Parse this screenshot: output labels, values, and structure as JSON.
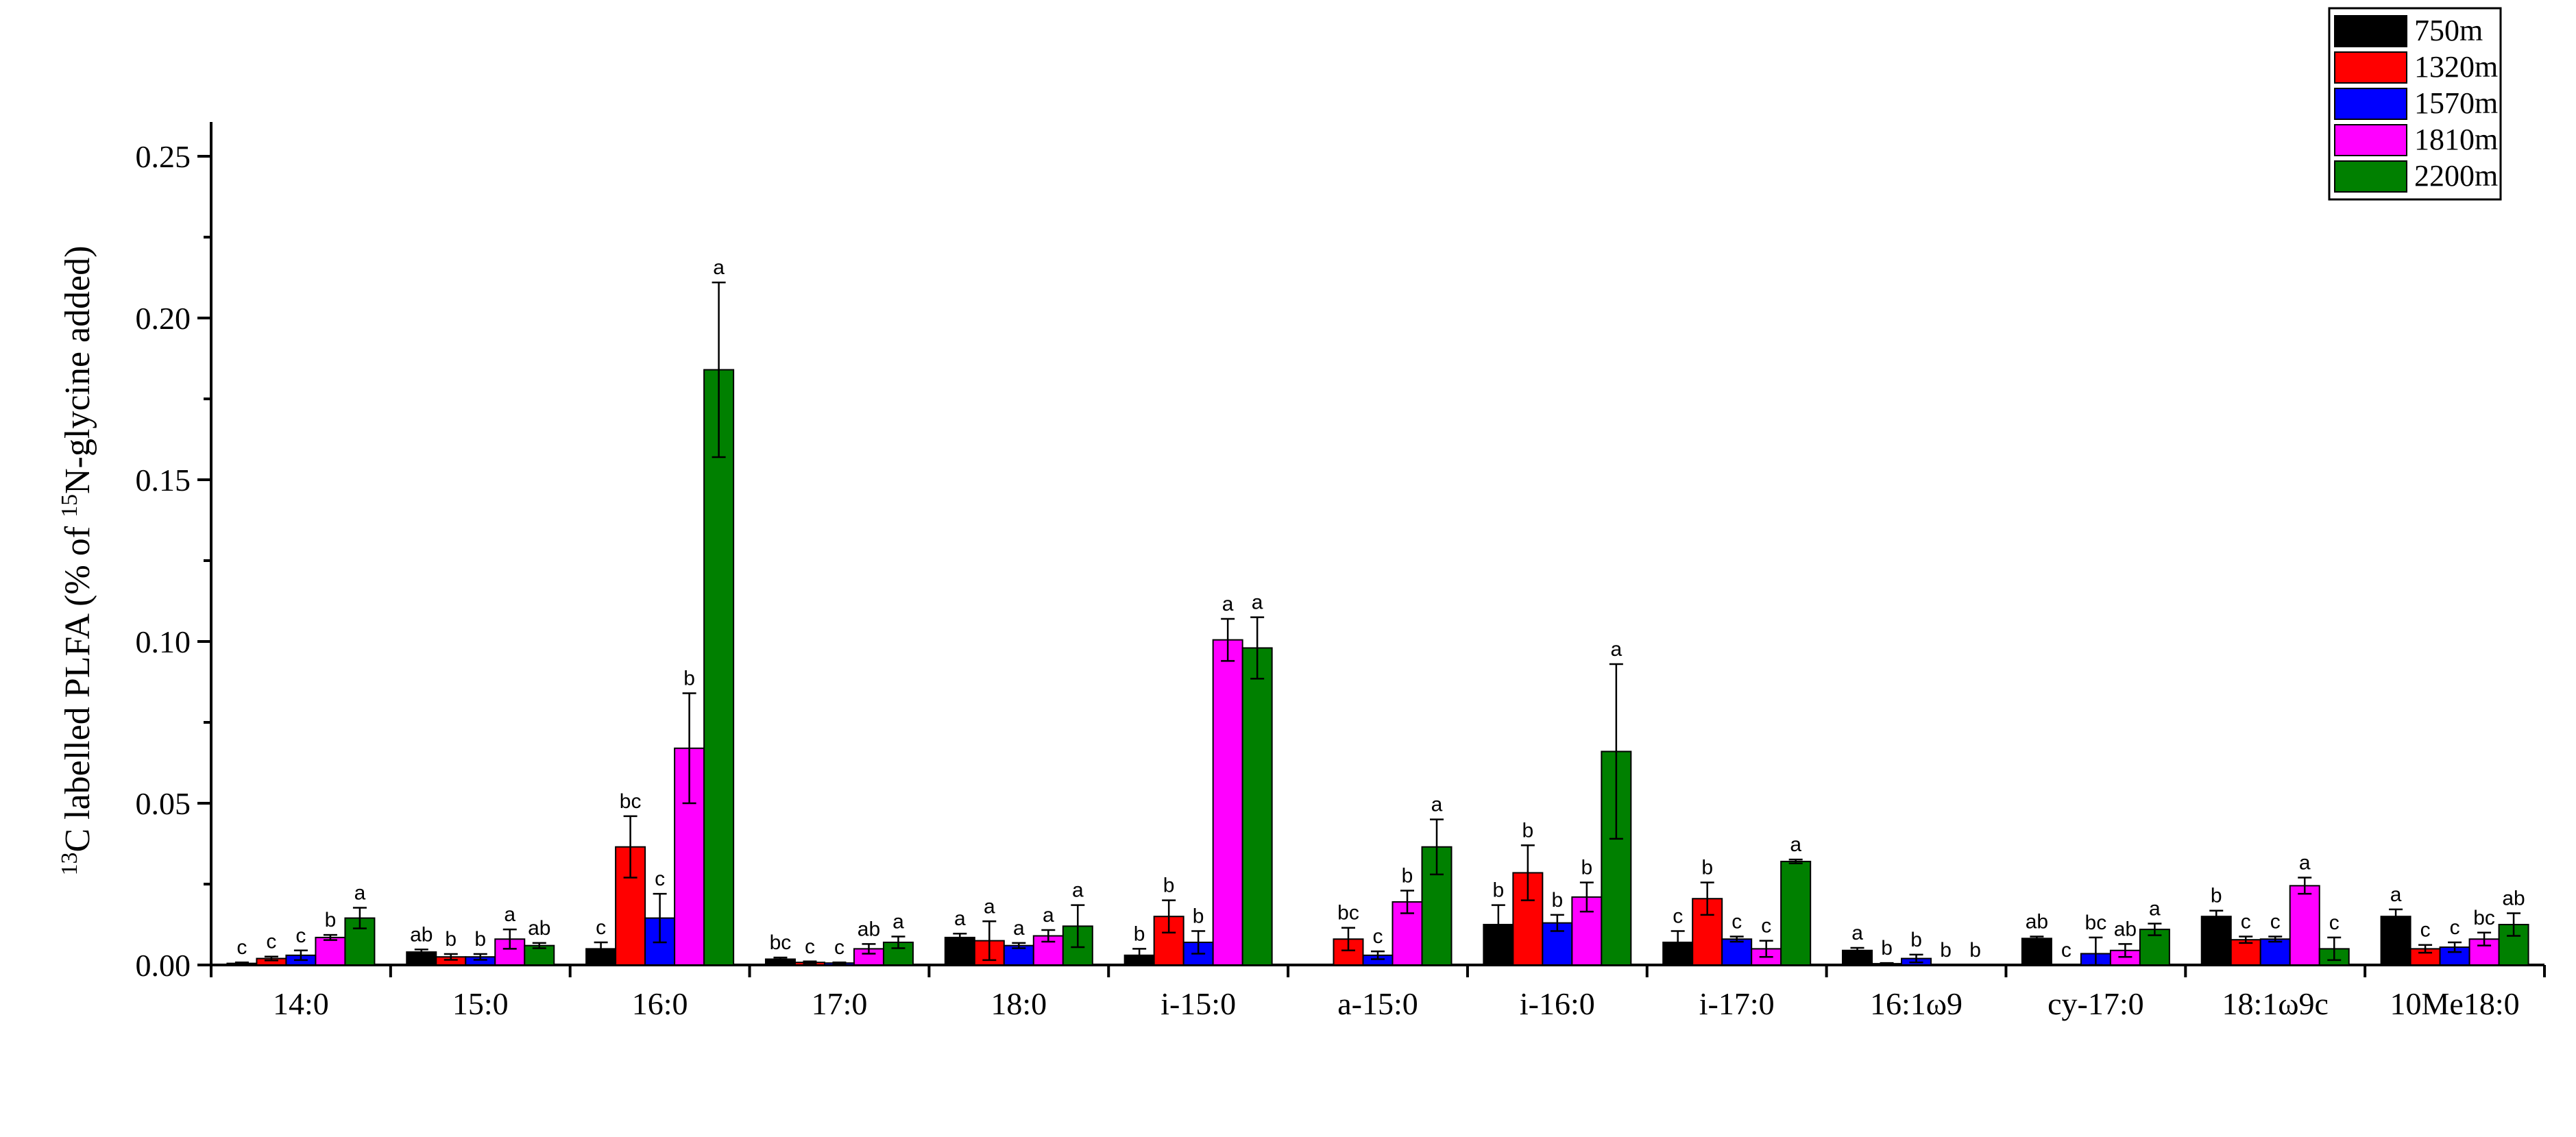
{
  "chart_data": {
    "type": "bar",
    "ylabel_parts": {
      "sup1": "13",
      "mid": "C labelled PLFA (% of ",
      "sup2": "15",
      "end": "N-glycine added)"
    },
    "ylim": [
      0,
      0.25
    ],
    "yticks": [
      "0.00",
      "0.05",
      "0.10",
      "0.15",
      "0.20",
      "0.25"
    ],
    "categories": [
      "14:0",
      "15:0",
      "16:0",
      "17:0",
      "18:0",
      "i-15:0",
      "a-15:0",
      "i-16:0",
      "i-17:0",
      "16:1ω9",
      "cy-17:0",
      "18:1ω9c",
      "10Me18:0"
    ],
    "legend_position": "top-right",
    "series": [
      {
        "name": "750m",
        "color": "#000000",
        "values": [
          0.0005,
          0.004,
          0.005,
          0.0018,
          0.0085,
          0.003,
          0.0,
          0.0125,
          0.007,
          0.0045,
          0.0082,
          0.015,
          0.015
        ],
        "errors": [
          0.0003,
          0.0008,
          0.002,
          0.0005,
          0.0012,
          0.002,
          0.0,
          0.006,
          0.0035,
          0.0008,
          0.0006,
          0.0018,
          0.0022
        ],
        "letters": [
          "c",
          "ab",
          "c",
          "bc",
          "a",
          "b",
          "",
          "b",
          "c",
          "a",
          "ab",
          "b",
          "a"
        ]
      },
      {
        "name": "1320m",
        "color": "#ff0000",
        "values": [
          0.002,
          0.0025,
          0.0365,
          0.0008,
          0.0075,
          0.015,
          0.008,
          0.0285,
          0.0205,
          0.0004,
          0.0,
          0.0078,
          0.005
        ],
        "errors": [
          0.0006,
          0.0009,
          0.0095,
          0.0003,
          0.006,
          0.005,
          0.0035,
          0.0085,
          0.005,
          0.0002,
          0.0,
          0.001,
          0.0012
        ],
        "letters": [
          "c",
          "b",
          "bc",
          "c",
          "a",
          "b",
          "bc",
          "b",
          "b",
          "b",
          "c",
          "c",
          "c"
        ]
      },
      {
        "name": "1570m",
        "color": "#0000ff",
        "values": [
          0.003,
          0.0025,
          0.0145,
          0.0006,
          0.006,
          0.007,
          0.003,
          0.013,
          0.008,
          0.002,
          0.0035,
          0.008,
          0.0055
        ],
        "errors": [
          0.0015,
          0.0009,
          0.0075,
          0.0002,
          0.0008,
          0.0035,
          0.0012,
          0.0025,
          0.0008,
          0.0012,
          0.005,
          0.0008,
          0.0015
        ],
        "letters": [
          "c",
          "b",
          "c",
          "c",
          "a",
          "b",
          "c",
          "b",
          "c",
          "b",
          "bc",
          "c",
          "c"
        ]
      },
      {
        "name": "1810m",
        "color": "#ff00ff",
        "values": [
          0.0085,
          0.008,
          0.067,
          0.005,
          0.009,
          0.1005,
          0.0195,
          0.021,
          0.005,
          0.0,
          0.0045,
          0.0245,
          0.008
        ],
        "errors": [
          0.0008,
          0.003,
          0.017,
          0.0015,
          0.0018,
          0.0065,
          0.0035,
          0.0045,
          0.0025,
          0.0,
          0.002,
          0.0025,
          0.002
        ],
        "letters": [
          "b",
          "a",
          "b",
          "ab",
          "a",
          "a",
          "b",
          "b",
          "c",
          "b",
          "ab",
          "a",
          "bc"
        ]
      },
      {
        "name": "2200m",
        "color": "#008000",
        "values": [
          0.0145,
          0.006,
          0.184,
          0.007,
          0.012,
          0.098,
          0.0365,
          0.066,
          0.032,
          0.0,
          0.011,
          0.005,
          0.0125
        ],
        "errors": [
          0.0032,
          0.0008,
          0.027,
          0.0018,
          0.0065,
          0.0095,
          0.0085,
          0.027,
          0.0006,
          0.0,
          0.0018,
          0.0035,
          0.0035
        ],
        "letters": [
          "a",
          "ab",
          "a",
          "a",
          "a",
          "a",
          "a",
          "a",
          "a",
          "b",
          "a",
          "c",
          "ab"
        ]
      }
    ]
  }
}
